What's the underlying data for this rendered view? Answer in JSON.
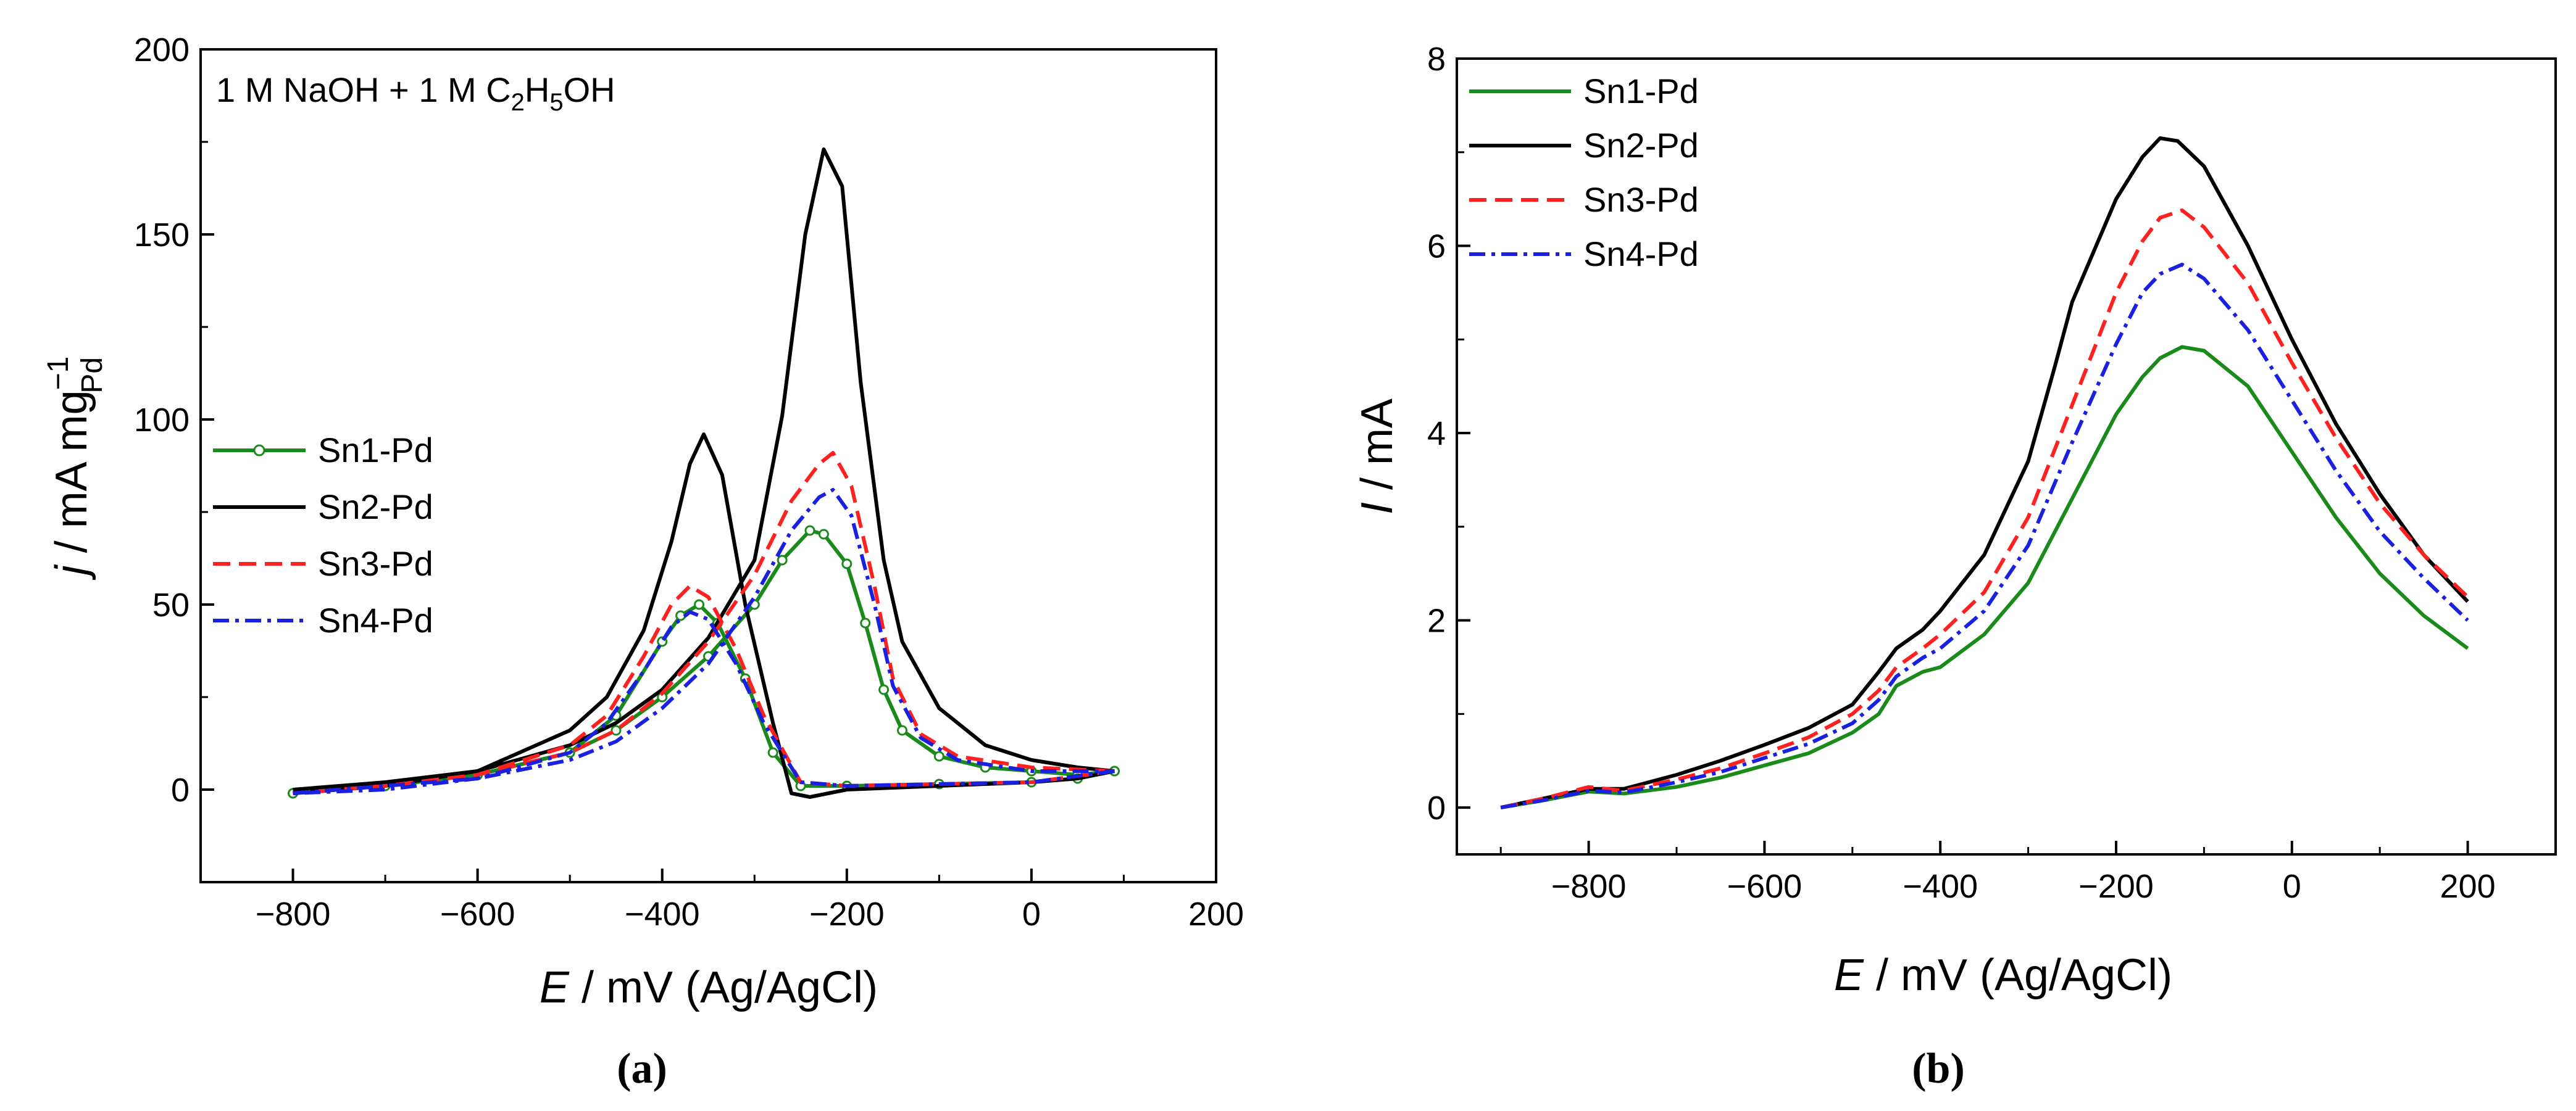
{
  "chart_data": [
    {
      "type": "line",
      "panel": "a",
      "caption": "(a)",
      "annotation": {
        "prefix": "1 M NaOH + 1 M C",
        "sub1": "2",
        "mid1": "H",
        "sub2": "5",
        "suffix": "OH"
      },
      "xlabel": {
        "italic": "E",
        "rest": " / mV (Ag/AgCl)"
      },
      "ylabel": {
        "italic": "j",
        "rest": " / mA mg",
        "sup": "−1",
        "sub": "Pd"
      },
      "xlim": [
        -900,
        200
      ],
      "ylim": [
        -25,
        200
      ],
      "xticks": [
        -800,
        -600,
        -400,
        -200,
        0,
        200
      ],
      "xtick_labels": [
        "−800",
        "−600",
        "−400",
        "−200",
        "0",
        "200"
      ],
      "yticks": [
        0,
        50,
        100,
        150,
        200
      ],
      "ytick_labels": [
        "0",
        "50",
        "100",
        "150",
        "200"
      ],
      "legend_position": "middle-left",
      "series": [
        {
          "name": "Sn1-Pd",
          "color": "#1a8a1a",
          "style": "solid-markers",
          "forward": [
            [
              -800,
              -1
            ],
            [
              -700,
              1
            ],
            [
              -600,
              4
            ],
            [
              -500,
              10
            ],
            [
              -450,
              16
            ],
            [
              -400,
              25
            ],
            [
              -350,
              36
            ],
            [
              -300,
              50
            ],
            [
              -270,
              62
            ],
            [
              -240,
              70
            ],
            [
              -225,
              69
            ],
            [
              -200,
              61
            ],
            [
              -180,
              45
            ],
            [
              -160,
              27
            ],
            [
              -140,
              16
            ],
            [
              -100,
              9
            ],
            [
              -50,
              6
            ],
            [
              0,
              5
            ],
            [
              50,
              4
            ],
            [
              90,
              5
            ]
          ],
          "backward": [
            [
              90,
              5
            ],
            [
              50,
              3
            ],
            [
              0,
              2
            ],
            [
              -100,
              1.5
            ],
            [
              -200,
              1
            ],
            [
              -250,
              1
            ],
            [
              -280,
              10
            ],
            [
              -310,
              30
            ],
            [
              -340,
              45
            ],
            [
              -360,
              50
            ],
            [
              -380,
              47
            ],
            [
              -400,
              40
            ],
            [
              -450,
              20
            ],
            [
              -500,
              10
            ],
            [
              -600,
              4
            ],
            [
              -700,
              1
            ],
            [
              -800,
              -1
            ]
          ]
        },
        {
          "name": "Sn2-Pd",
          "color": "#000000",
          "style": "solid",
          "forward": [
            [
              -800,
              0
            ],
            [
              -700,
              2
            ],
            [
              -600,
              5
            ],
            [
              -500,
              12
            ],
            [
              -450,
              18
            ],
            [
              -400,
              27
            ],
            [
              -350,
              41
            ],
            [
              -300,
              62
            ],
            [
              -270,
              101
            ],
            [
              -245,
              150
            ],
            [
              -225,
              173
            ],
            [
              -205,
              163
            ],
            [
              -185,
              110
            ],
            [
              -160,
              62
            ],
            [
              -140,
              40
            ],
            [
              -100,
              22
            ],
            [
              -50,
              12
            ],
            [
              0,
              8
            ],
            [
              50,
              6
            ],
            [
              90,
              5
            ]
          ],
          "backward": [
            [
              90,
              5
            ],
            [
              50,
              3
            ],
            [
              0,
              2
            ],
            [
              -100,
              1
            ],
            [
              -200,
              0
            ],
            [
              -240,
              -2
            ],
            [
              -260,
              -1
            ],
            [
              -280,
              18
            ],
            [
              -310,
              50
            ],
            [
              -335,
              85
            ],
            [
              -355,
              96
            ],
            [
              -370,
              88
            ],
            [
              -390,
              67
            ],
            [
              -420,
              43
            ],
            [
              -460,
              25
            ],
            [
              -500,
              16
            ],
            [
              -600,
              5
            ],
            [
              -700,
              1
            ],
            [
              -800,
              -1
            ]
          ]
        },
        {
          "name": "Sn3-Pd",
          "color": "#ff2020",
          "style": "dashed",
          "forward": [
            [
              -800,
              -1
            ],
            [
              -700,
              1
            ],
            [
              -600,
              4
            ],
            [
              -500,
              10
            ],
            [
              -450,
              16
            ],
            [
              -400,
              26
            ],
            [
              -350,
              40
            ],
            [
              -300,
              58
            ],
            [
              -260,
              78
            ],
            [
              -230,
              88
            ],
            [
              -215,
              91
            ],
            [
              -195,
              82
            ],
            [
              -170,
              55
            ],
            [
              -150,
              30
            ],
            [
              -120,
              15
            ],
            [
              -80,
              9
            ],
            [
              0,
              6
            ],
            [
              90,
              5
            ]
          ],
          "backward": [
            [
              90,
              5
            ],
            [
              0,
              2
            ],
            [
              -100,
              1.5
            ],
            [
              -200,
              1
            ],
            [
              -250,
              2
            ],
            [
              -290,
              20
            ],
            [
              -320,
              38
            ],
            [
              -350,
              52
            ],
            [
              -370,
              55
            ],
            [
              -390,
              50
            ],
            [
              -420,
              36
            ],
            [
              -460,
              20
            ],
            [
              -500,
              12
            ],
            [
              -600,
              4
            ],
            [
              -700,
              1
            ],
            [
              -800,
              -1
            ]
          ]
        },
        {
          "name": "Sn4-Pd",
          "color": "#1a20e0",
          "style": "dashdot",
          "forward": [
            [
              -800,
              -1
            ],
            [
              -700,
              1
            ],
            [
              -600,
              3
            ],
            [
              -500,
              8
            ],
            [
              -450,
              13
            ],
            [
              -400,
              22
            ],
            [
              -350,
              34
            ],
            [
              -300,
              52
            ],
            [
              -260,
              70
            ],
            [
              -230,
              79
            ],
            [
              -215,
              81
            ],
            [
              -195,
              74
            ],
            [
              -170,
              50
            ],
            [
              -150,
              28
            ],
            [
              -120,
              14
            ],
            [
              -80,
              8
            ],
            [
              0,
              5
            ],
            [
              90,
              5
            ]
          ],
          "backward": [
            [
              90,
              5
            ],
            [
              0,
              2
            ],
            [
              -100,
              1.5
            ],
            [
              -200,
              1
            ],
            [
              -250,
              2
            ],
            [
              -290,
              18
            ],
            [
              -320,
              34
            ],
            [
              -350,
              46
            ],
            [
              -370,
              48
            ],
            [
              -390,
              44
            ],
            [
              -420,
              32
            ],
            [
              -460,
              18
            ],
            [
              -500,
              10
            ],
            [
              -600,
              3
            ],
            [
              -700,
              0
            ],
            [
              -800,
              -1
            ]
          ]
        }
      ]
    },
    {
      "type": "line",
      "panel": "b",
      "caption": "(b)",
      "xlabel": {
        "italic": "E",
        "rest": " / mV (Ag/AgCl)"
      },
      "ylabel": {
        "italic": "I",
        "rest": " / mA"
      },
      "xlim": [
        -950,
        300
      ],
      "ylim": [
        -0.5,
        8
      ],
      "xticks": [
        -800,
        -600,
        -400,
        -200,
        0,
        200
      ],
      "xtick_labels": [
        "−800",
        "−600",
        "−400",
        "−200",
        "0",
        "200"
      ],
      "yticks": [
        0,
        2,
        4,
        6,
        8
      ],
      "ytick_labels": [
        "0",
        "2",
        "4",
        "6",
        "8"
      ],
      "legend_position": "top-left",
      "series": [
        {
          "name": "Sn1-Pd",
          "color": "#1a8a1a",
          "style": "solid",
          "points": [
            [
              -900,
              0
            ],
            [
              -850,
              0.08
            ],
            [
              -800,
              0.17
            ],
            [
              -760,
              0.15
            ],
            [
              -700,
              0.22
            ],
            [
              -650,
              0.32
            ],
            [
              -600,
              0.45
            ],
            [
              -550,
              0.58
            ],
            [
              -500,
              0.8
            ],
            [
              -470,
              1.0
            ],
            [
              -450,
              1.3
            ],
            [
              -420,
              1.45
            ],
            [
              -400,
              1.5
            ],
            [
              -350,
              1.85
            ],
            [
              -300,
              2.4
            ],
            [
              -250,
              3.3
            ],
            [
              -200,
              4.2
            ],
            [
              -170,
              4.6
            ],
            [
              -150,
              4.8
            ],
            [
              -125,
              4.92
            ],
            [
              -100,
              4.88
            ],
            [
              -50,
              4.5
            ],
            [
              0,
              3.8
            ],
            [
              50,
              3.1
            ],
            [
              100,
              2.5
            ],
            [
              150,
              2.05
            ],
            [
              200,
              1.7
            ]
          ]
        },
        {
          "name": "Sn2-Pd",
          "color": "#000000",
          "style": "solid",
          "points": [
            [
              -900,
              0
            ],
            [
              -850,
              0.1
            ],
            [
              -800,
              0.2
            ],
            [
              -760,
              0.2
            ],
            [
              -700,
              0.35
            ],
            [
              -650,
              0.5
            ],
            [
              -600,
              0.67
            ],
            [
              -550,
              0.85
            ],
            [
              -500,
              1.1
            ],
            [
              -470,
              1.45
            ],
            [
              -450,
              1.7
            ],
            [
              -420,
              1.9
            ],
            [
              -400,
              2.1
            ],
            [
              -350,
              2.7
            ],
            [
              -300,
              3.7
            ],
            [
              -270,
              4.7
            ],
            [
              -250,
              5.4
            ],
            [
              -200,
              6.5
            ],
            [
              -170,
              6.95
            ],
            [
              -150,
              7.15
            ],
            [
              -130,
              7.12
            ],
            [
              -100,
              6.85
            ],
            [
              -50,
              6.0
            ],
            [
              0,
              5.0
            ],
            [
              50,
              4.1
            ],
            [
              100,
              3.35
            ],
            [
              150,
              2.7
            ],
            [
              200,
              2.2
            ]
          ]
        },
        {
          "name": "Sn3-Pd",
          "color": "#ff2020",
          "style": "dashed",
          "points": [
            [
              -900,
              0
            ],
            [
              -850,
              0.1
            ],
            [
              -800,
              0.22
            ],
            [
              -760,
              0.18
            ],
            [
              -700,
              0.3
            ],
            [
              -650,
              0.42
            ],
            [
              -600,
              0.58
            ],
            [
              -550,
              0.75
            ],
            [
              -500,
              1.0
            ],
            [
              -470,
              1.25
            ],
            [
              -450,
              1.5
            ],
            [
              -420,
              1.7
            ],
            [
              -400,
              1.85
            ],
            [
              -350,
              2.3
            ],
            [
              -300,
              3.1
            ],
            [
              -250,
              4.3
            ],
            [
              -200,
              5.5
            ],
            [
              -170,
              6.05
            ],
            [
              -150,
              6.3
            ],
            [
              -125,
              6.38
            ],
            [
              -100,
              6.2
            ],
            [
              -50,
              5.6
            ],
            [
              0,
              4.75
            ],
            [
              50,
              3.95
            ],
            [
              100,
              3.25
            ],
            [
              150,
              2.7
            ],
            [
              200,
              2.25
            ]
          ]
        },
        {
          "name": "Sn4-Pd",
          "color": "#1a20e0",
          "style": "dashdot",
          "points": [
            [
              -900,
              0
            ],
            [
              -850,
              0.08
            ],
            [
              -800,
              0.18
            ],
            [
              -760,
              0.16
            ],
            [
              -700,
              0.27
            ],
            [
              -650,
              0.38
            ],
            [
              -600,
              0.53
            ],
            [
              -550,
              0.68
            ],
            [
              -500,
              0.9
            ],
            [
              -470,
              1.15
            ],
            [
              -450,
              1.4
            ],
            [
              -420,
              1.6
            ],
            [
              -400,
              1.7
            ],
            [
              -350,
              2.1
            ],
            [
              -300,
              2.8
            ],
            [
              -250,
              3.9
            ],
            [
              -200,
              4.95
            ],
            [
              -170,
              5.5
            ],
            [
              -150,
              5.7
            ],
            [
              -125,
              5.8
            ],
            [
              -100,
              5.65
            ],
            [
              -50,
              5.1
            ],
            [
              0,
              4.35
            ],
            [
              50,
              3.6
            ],
            [
              100,
              2.95
            ],
            [
              150,
              2.45
            ],
            [
              200,
              2.0
            ]
          ]
        }
      ]
    }
  ]
}
